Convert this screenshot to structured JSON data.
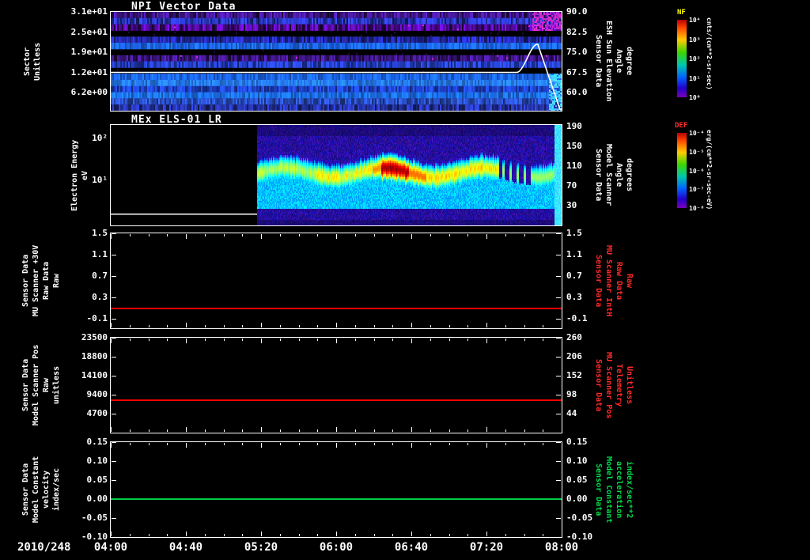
{
  "window": {
    "background": "#000000"
  },
  "x_axis": {
    "date": "2010/248",
    "tick_labels": [
      "04:00",
      "04:40",
      "05:20",
      "06:00",
      "06:40",
      "07:20",
      "08:00"
    ]
  },
  "colorbars": [
    {
      "name": "NF",
      "name_color": "#ffff00",
      "tick_labels": [
        "10⁴",
        "10³",
        "10²",
        "10¹",
        "10⁰"
      ],
      "units": "cnts/(cm**2-sr-sec)"
    },
    {
      "name": "DEF",
      "name_color": "#ff3030",
      "tick_labels": [
        "10⁻⁴",
        "10⁻⁵",
        "10⁻⁶",
        "10⁻⁷",
        "10⁻⁸"
      ],
      "units": "erg/(cm**2-sr-sec-eV)"
    }
  ],
  "panels": [
    {
      "title": "NPI Vector Data",
      "left_label_lines": [
        "Sector",
        "Unitless"
      ],
      "left_label_color": "#ffffff",
      "left_tick_labels": [
        "3.1e+01",
        "2.5e+01",
        "1.9e+01",
        "1.2e+01",
        "6.2e+00"
      ],
      "right_tick_labels": [
        "90.0",
        "82.5",
        "75.0",
        "67.5",
        "60.0"
      ],
      "right_label_lines": [
        "Sensor Data",
        "ESH Sun Elevation",
        "Angle",
        "degree"
      ],
      "right_label_color": "#ffffff"
    },
    {
      "title": "MEx ELS-01 LR",
      "left_label_lines": [
        "Electron Energy",
        "eV"
      ],
      "left_label_color": "#ffffff",
      "left_tick_labels": [
        "10²",
        "10¹"
      ],
      "right_tick_labels": [
        "190",
        "150",
        "110",
        "70",
        "30"
      ],
      "right_label_lines": [
        "Sensor Data",
        "Model Scanner",
        "Angle",
        "degrees"
      ],
      "right_label_color": "#ffffff"
    },
    {
      "left_label_lines": [
        "Sensor Data",
        "MU Scanner +30V",
        "Raw Data",
        "Raw"
      ],
      "left_label_color": "#ffffff",
      "left_tick_labels": [
        "1.5",
        "1.1",
        "0.7",
        "0.3",
        "-0.1"
      ],
      "right_tick_labels": [
        "1.5",
        "1.1",
        "0.7",
        "0.3",
        "-0.1"
      ],
      "right_label_lines": [
        "Sensor Data",
        "MU Scanner IntH",
        "Raw Data",
        "Raw"
      ],
      "right_label_color": "#ff2a2a",
      "line_color": "#ff0000"
    },
    {
      "left_label_lines": [
        "Sensor Data",
        "Model Scanner Pos",
        "Raw",
        "unitless"
      ],
      "left_label_color": "#ffffff",
      "left_tick_labels": [
        "23500",
        "18800",
        "14100",
        "9400",
        "4700"
      ],
      "right_tick_labels": [
        "260",
        "206",
        "152",
        "98",
        "44"
      ],
      "right_label_lines": [
        "Sensor Data",
        "MU Scanner Pos",
        "Telemetry",
        "Unitless"
      ],
      "right_label_color": "#ff2a2a",
      "line_color": "#ff0000"
    },
    {
      "left_label_lines": [
        "Sensor Data",
        "Model Constant",
        "velocity",
        "index/sec"
      ],
      "left_label_color": "#ffffff",
      "left_tick_labels": [
        "0.15",
        "0.10",
        "0.05",
        "0.00",
        "-0.05",
        "-0.10"
      ],
      "right_tick_labels": [
        "0.15",
        "0.10",
        "0.05",
        "0.00",
        "-0.05",
        "-0.10"
      ],
      "right_label_lines": [
        "Sensor Data",
        "Model Constant",
        "acceleration",
        "index/sec**2"
      ],
      "right_label_color": "#00dd4c",
      "line_color": "#00cc44"
    }
  ],
  "chart_data": [
    {
      "type": "heatmap",
      "panel": 1,
      "title": "NPI Vector Data",
      "x_start": "2010/248 04:00",
      "x_end": "2010/248 08:00",
      "ylabel": "Sector (Unitless)",
      "ytick_values": [
        31,
        25,
        19,
        12,
        6.2
      ],
      "right_axis_label": "Sensor Data ESH Sun Elevation Angle (degree)",
      "right_tick_values": [
        90.0,
        82.5,
        75.0,
        67.5,
        60.0
      ],
      "colorbar_name": "NF",
      "colorbar_units": "cnts/(cm**2-sr-sec)",
      "content_summary": "Horizontal sector bands: purple/dark speckled rows with black gaps in upper half, bright blue-cyan count rows in lower half; magenta enhancement at top-right after ~07:45; cyan edge column near 08:00",
      "overlay_series": {
        "name": "ESH Sun Elevation Angle (degree)",
        "color": "#ffffff",
        "points": [
          [
            "04:00",
            67.5
          ],
          [
            "07:26",
            67.5
          ],
          [
            "07:46",
            78
          ],
          [
            "08:00",
            52
          ]
        ]
      }
    },
    {
      "type": "heatmap",
      "panel": 2,
      "title": "MEx ELS-01 LR",
      "ylabel": "Electron Energy (eV)",
      "yscale": "log",
      "ytick_values": [
        100,
        10
      ],
      "y_range_eV": [
        1,
        200
      ],
      "right_axis_label": "Sensor Data Model Scanner Angle (degrees)",
      "right_tick_values": [
        190,
        150,
        110,
        70,
        30
      ],
      "colorbar_name": "DEF",
      "colorbar_units": "erg/(cm**2-sr-sec-eV)",
      "content_summary": "No data (flat white baseline) from 04:00 to ~05:15; afterwards broad green 10-40 eV electron band over blue/purple speckle background; intense red-orange enhancement ~06:25-06:40; vertical dropout striations ~07:25-07:45; bright cyan full-energy column at ~07:58"
    },
    {
      "type": "line",
      "panel": 3,
      "series": [
        {
          "name": "Sensor Data MU Scanner +30V Raw Data (Raw)",
          "color": "#ff0000",
          "constant": true,
          "value": 0.1
        }
      ],
      "yticks_left": [
        1.5,
        1.1,
        0.7,
        0.3,
        -0.1
      ],
      "yticks_right": [
        1.5,
        1.1,
        0.7,
        0.3,
        -0.1
      ],
      "right_axis_label": "Sensor Data MU Scanner IntH Raw Data (Raw)"
    },
    {
      "type": "line",
      "panel": 4,
      "series": [
        {
          "name": "Sensor Data Model Scanner Pos Raw (unitless)",
          "color": "#ff0000",
          "constant": true,
          "value": 8030
        }
      ],
      "yticks_left": [
        23500,
        18800,
        14100,
        9400,
        4700
      ],
      "yticks_right": [
        260,
        206,
        152,
        98,
        44
      ],
      "right_axis_label": "Sensor Data MU Scanner Pos Telemetry (Unitless)"
    },
    {
      "type": "line",
      "panel": 5,
      "series": [
        {
          "name": "Sensor Data Model Constant velocity (index/sec)",
          "color": "#00cc44",
          "constant": true,
          "value": 0.0
        }
      ],
      "yticks_left": [
        0.15,
        0.1,
        0.05,
        0.0,
        -0.05,
        -0.1
      ],
      "yticks_right": [
        0.15,
        0.1,
        0.05,
        0.0,
        -0.05,
        -0.1
      ],
      "right_axis_label": "Sensor Data Model Constant acceleration (index/sec**2)"
    }
  ]
}
